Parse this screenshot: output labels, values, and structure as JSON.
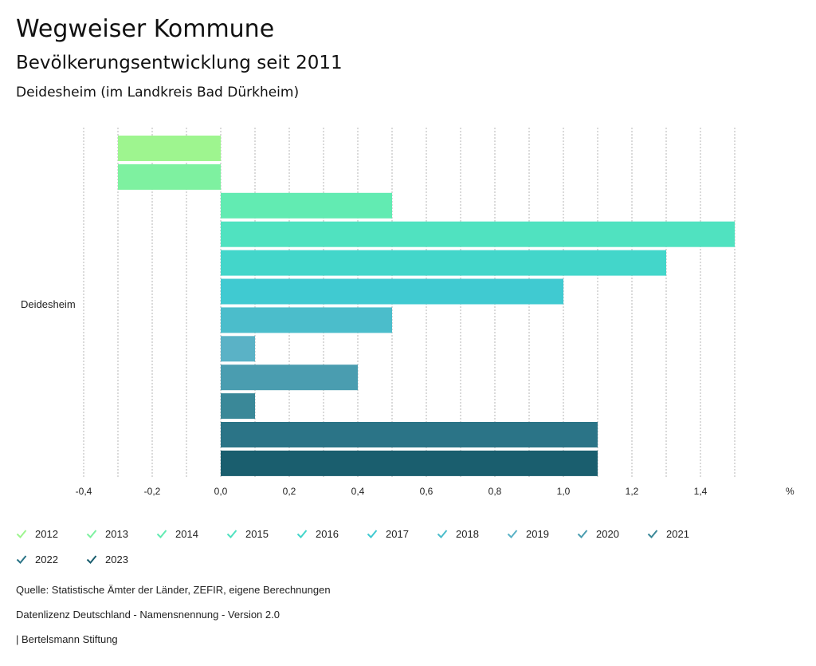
{
  "header": {
    "title": "Wegweiser Kommune",
    "subtitle": "Bevölkerungsentwicklung seit 2011",
    "place": "Deidesheim (im Landkreis Bad Dürkheim)"
  },
  "chart_data": {
    "type": "bar",
    "orientation": "horizontal",
    "categories": [
      "Deidesheim"
    ],
    "series": [
      {
        "name": "2012",
        "values": [
          -0.3
        ],
        "color": "#9ef58f"
      },
      {
        "name": "2013",
        "values": [
          -0.3
        ],
        "color": "#7ef1a0"
      },
      {
        "name": "2014",
        "values": [
          0.5
        ],
        "color": "#62ebb2"
      },
      {
        "name": "2015",
        "values": [
          1.5
        ],
        "color": "#50e2c0"
      },
      {
        "name": "2016",
        "values": [
          1.3
        ],
        "color": "#43d6ca"
      },
      {
        "name": "2017",
        "values": [
          1.0
        ],
        "color": "#40cad1"
      },
      {
        "name": "2018",
        "values": [
          0.5
        ],
        "color": "#4bbdcb"
      },
      {
        "name": "2019",
        "values": [
          0.1
        ],
        "color": "#5ab2c6"
      },
      {
        "name": "2020",
        "values": [
          0.4
        ],
        "color": "#4a9db0"
      },
      {
        "name": "2021",
        "values": [
          0.1
        ],
        "color": "#3a8898"
      },
      {
        "name": "2022",
        "values": [
          1.1
        ],
        "color": "#2b7487"
      },
      {
        "name": "2023",
        "values": [
          1.1
        ],
        "color": "#1a5e6e"
      }
    ],
    "xlim": [
      -0.4,
      1.6
    ],
    "ticks": [
      -0.4,
      -0.2,
      0.0,
      0.2,
      0.4,
      0.6,
      0.8,
      1.0,
      1.2,
      1.4
    ],
    "tick_labels": [
      "-0,4",
      "-0,2",
      "0,0",
      "0,2",
      "0,4",
      "0,6",
      "0,8",
      "1,0",
      "1,2",
      "1,4"
    ],
    "unit": "%",
    "grid": true,
    "legend_position": "bottom"
  },
  "footer": {
    "source": "Quelle: Statistische Ämter der Länder, ZEFIR, eigene Berechnungen",
    "license": "Datenlizenz Deutschland - Namensnennung - Version 2.0",
    "publisher": "| Bertelsmann Stiftung"
  }
}
